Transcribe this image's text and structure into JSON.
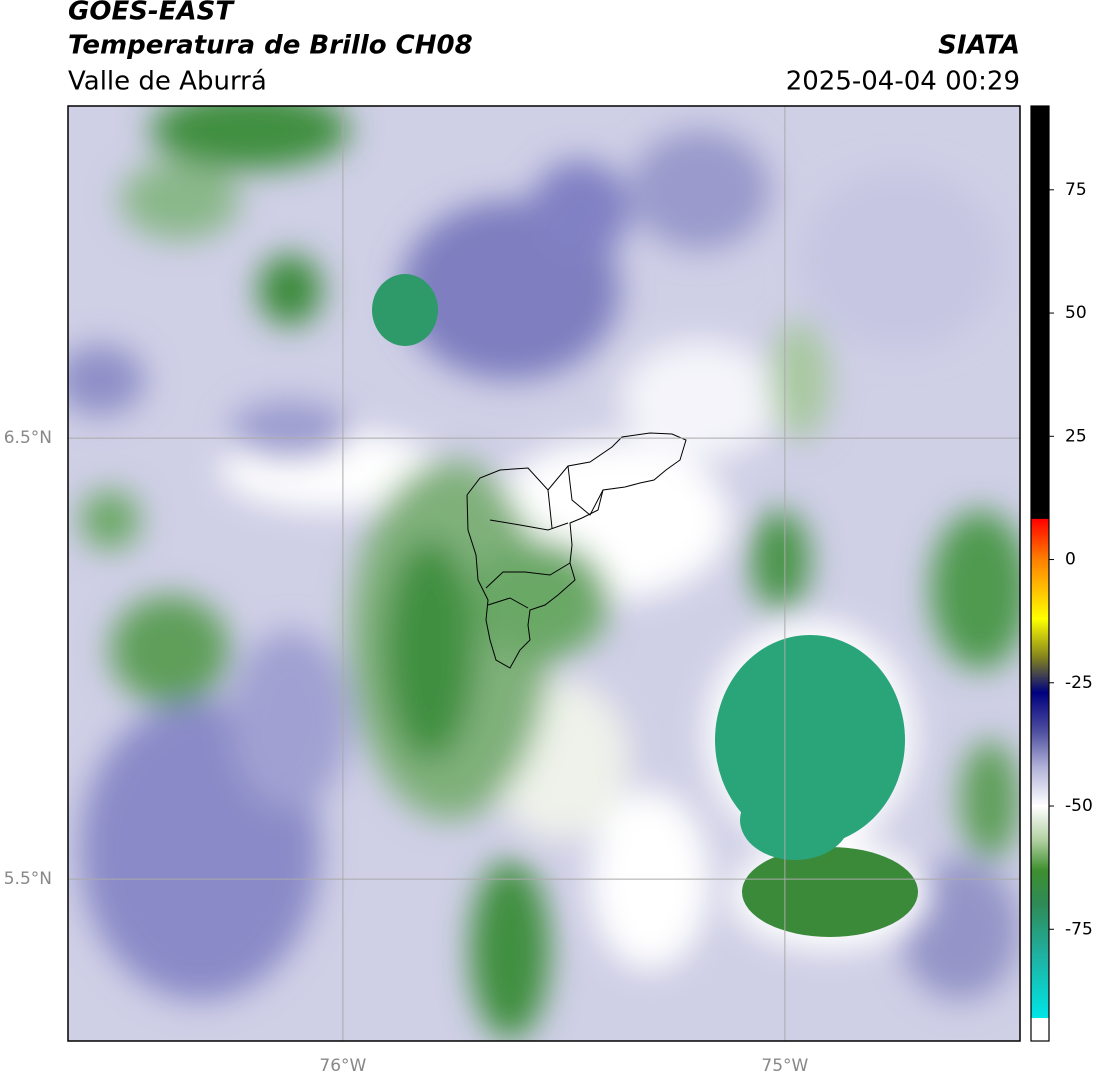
{
  "header": {
    "satellite": "GOES-EAST",
    "product": "Temperatura de Brillo CH08",
    "region": "Valle de Aburrá",
    "source": "SIATA",
    "datetime": "2025-04-04 00:29"
  },
  "map": {
    "xlim": [
      -76.622,
      -74.468
    ],
    "ylim": [
      5.133,
      7.253
    ],
    "xticks": [
      {
        "value": -76,
        "label": "76°W"
      },
      {
        "value": -75,
        "label": "75°W"
      }
    ],
    "yticks": [
      {
        "value": 5.5,
        "label": "5.5°N"
      },
      {
        "value": 6.5,
        "label": "6.5°N"
      }
    ],
    "grid": true,
    "grid_color": "#aaaaaa",
    "tick_label_color": "#888888"
  },
  "colorbar": {
    "lim": [
      -93,
      92
    ],
    "ticks": [
      -75,
      -50,
      -25,
      0,
      25,
      50,
      75
    ],
    "under_color": "#ffffff",
    "stops": [
      {
        "value": 92,
        "color": "#000000"
      },
      {
        "value": 8.3,
        "color": "#000000"
      },
      {
        "value": 8.2,
        "color": "#ff0000"
      },
      {
        "value": 0,
        "color": "#ff8000"
      },
      {
        "value": -12,
        "color": "#ffff00"
      },
      {
        "value": -20,
        "color": "#808020"
      },
      {
        "value": -27,
        "color": "#000080"
      },
      {
        "value": -35,
        "color": "#5050a0"
      },
      {
        "value": -42,
        "color": "#b0b0d8"
      },
      {
        "value": -50,
        "color": "#ffffff"
      },
      {
        "value": -57,
        "color": "#b0d0a0"
      },
      {
        "value": -63,
        "color": "#3f8f2f"
      },
      {
        "value": -70,
        "color": "#2e8b57"
      },
      {
        "value": -80,
        "color": "#20b0a0"
      },
      {
        "value": -93,
        "color": "#00e5e5"
      }
    ]
  }
}
